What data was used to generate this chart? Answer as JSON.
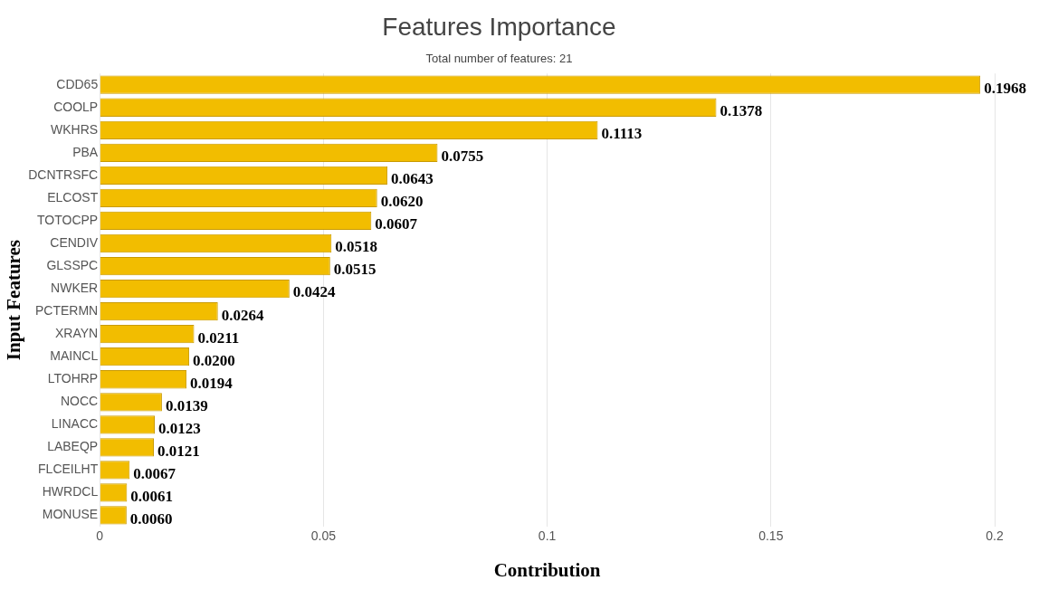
{
  "chart_data": {
    "type": "bar",
    "orientation": "horizontal",
    "title": "Features Importance",
    "subtitle": "Total number of features: 21",
    "xlabel": "Contribution",
    "ylabel": "Input Features",
    "categories": [
      "CDD65",
      "COOLP",
      "WKHRS",
      "PBA",
      "DCNTRSFC",
      "ELCOST",
      "TOTOCPP",
      "CENDIV",
      "GLSSPC",
      "NWKER",
      "PCTERMN",
      "XRAYN",
      "MAINCL",
      "LTOHRP",
      "NOCC",
      "LINACC",
      "LABEQP",
      "FLCEILHT",
      "HWRDCL",
      "MONUSE"
    ],
    "values": [
      0.1968,
      0.1378,
      0.1113,
      0.0755,
      0.0643,
      0.062,
      0.0607,
      0.0518,
      0.0515,
      0.0424,
      0.0264,
      0.0211,
      0.02,
      0.0194,
      0.0139,
      0.0123,
      0.0121,
      0.0067,
      0.0061,
      0.006
    ],
    "value_labels": [
      "0.1968",
      "0.1378",
      "0.1113",
      "0.0755",
      "0.0643",
      "0.0620",
      "0.0607",
      "0.0518",
      "0.0515",
      "0.0424",
      "0.0264",
      "0.0211",
      "0.0200",
      "0.0194",
      "0.0139",
      "0.0123",
      "0.0121",
      "0.0067",
      "0.0061",
      "0.0060"
    ],
    "color": "#f2bd00",
    "xlim": [
      0,
      0.2
    ],
    "xticks": [
      0,
      0.05,
      0.1,
      0.15,
      0.2
    ],
    "grid": "x"
  }
}
